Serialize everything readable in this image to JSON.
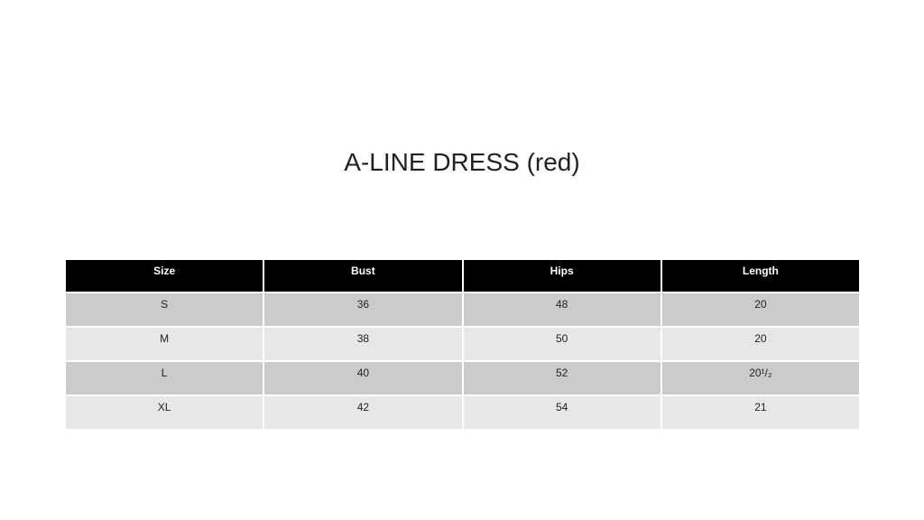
{
  "title": "A-LINE DRESS (red)",
  "table": {
    "headers": [
      "Size",
      "Bust",
      "Hips",
      "Length"
    ],
    "rows": [
      [
        "S",
        "36",
        "48",
        "20"
      ],
      [
        "M",
        "38",
        "50",
        "20"
      ],
      [
        "L",
        "40",
        "52",
        "20¹/₂"
      ],
      [
        "XL",
        "42",
        "54",
        "21"
      ]
    ]
  },
  "colors": {
    "header_bg": "#000000",
    "row_dark": "#cbcbcb",
    "row_light": "#e7e7e7"
  }
}
